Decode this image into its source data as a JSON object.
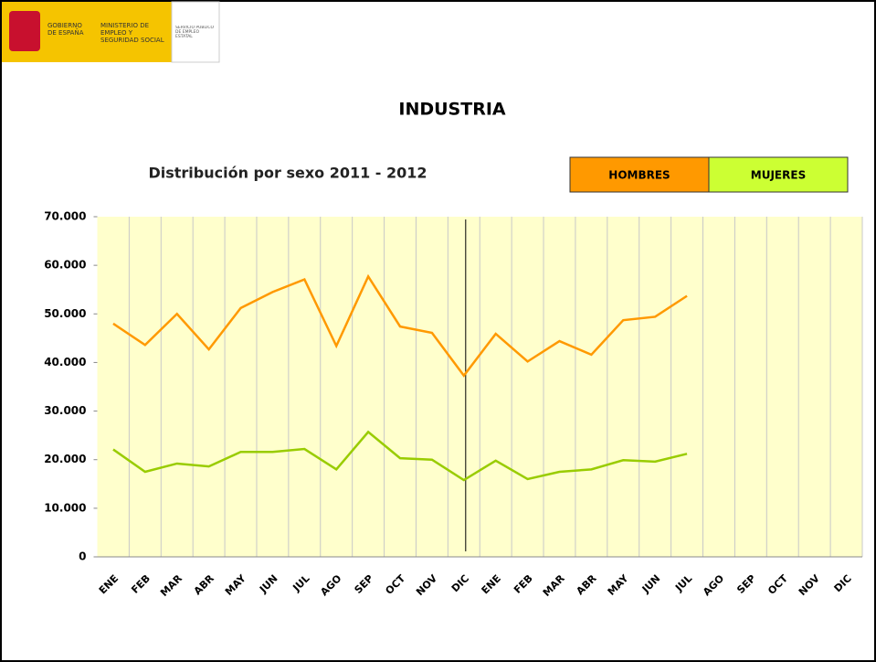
{
  "header": {
    "government": "GOBIERNO DE ESPAÑA",
    "ministry": "MINISTERIO DE EMPLEO Y SEGURIDAD SOCIAL",
    "service": "SERVICIO PÚBLICO DE EMPLEO ESTATAL"
  },
  "chart_data": {
    "type": "line",
    "title": "INDUSTRIA",
    "subtitle": "Distribución por sexo 2011 - 2012",
    "categories": [
      "ENE",
      "FEB",
      "MAR",
      "ABR",
      "MAY",
      "JUN",
      "JUL",
      "AGO",
      "SEP",
      "OCT",
      "NOV",
      "DIC",
      "ENE",
      "FEB",
      "MAR",
      "ABR",
      "MAY",
      "JUN",
      "JUL",
      "AGO",
      "SEP",
      "OCT",
      "NOV",
      "DIC"
    ],
    "series": [
      {
        "name": "HOMBRES",
        "color": "#ff9900",
        "legend_color": "#ff9900",
        "values": [
          48000,
          43600,
          50000,
          42700,
          51200,
          54500,
          57100,
          43400,
          57700,
          47400,
          46100,
          37300,
          45900,
          40200,
          44400,
          41600,
          48700,
          49400,
          53700,
          null,
          null,
          null,
          null,
          null
        ]
      },
      {
        "name": "MUJERES",
        "color": "#99cc00",
        "legend_color": "#ccff33",
        "values": [
          22100,
          17500,
          19200,
          18600,
          21600,
          21600,
          22200,
          18000,
          25700,
          20300,
          20000,
          15800,
          19800,
          16000,
          17500,
          18000,
          19900,
          19600,
          21200,
          null,
          null,
          null,
          null,
          null
        ]
      }
    ],
    "ylim": [
      0,
      70000
    ],
    "yticks": [
      0,
      {
        "value": 10000,
        "label": "10.000"
      },
      {
        "value": 20000,
        "label": "20.000"
      },
      {
        "value": 30000,
        "label": "30.000"
      },
      {
        "value": 40000,
        "label": "40.000"
      },
      {
        "value": 50000,
        "label": "50.000"
      },
      {
        "value": 60000,
        "label": "60.000"
      },
      {
        "value": 70000,
        "label": "70.000"
      }
    ],
    "grid": true,
    "plot_background": "#ffffcc"
  }
}
